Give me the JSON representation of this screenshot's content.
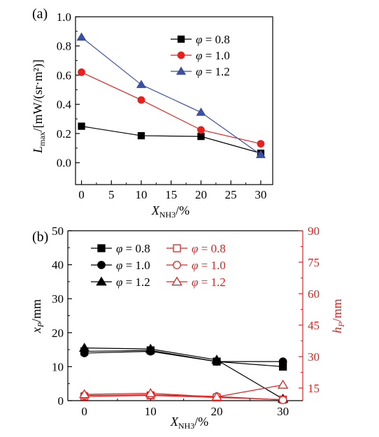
{
  "chart_data": [
    {
      "type": "line",
      "panel_label": "(a)",
      "xlabel_main": "X",
      "xlabel_sub": "NH3",
      "xlabel_unit": "/%",
      "ylabel_main": "L",
      "ylabel_sub": "max",
      "ylabel_unit": "/[mW/(sr·m²)]",
      "xlim": [
        -1,
        32
      ],
      "ylim": [
        -0.15,
        1.0
      ],
      "xticks": [
        0,
        5,
        10,
        15,
        20,
        25,
        30
      ],
      "yticks": [
        0.0,
        0.2,
        0.4,
        0.6,
        0.8,
        1.0
      ],
      "ytick_labels": [
        "0.0",
        "0.2",
        "0.4",
        "0.6",
        "0.8",
        "1.0"
      ],
      "legend_position": "top-right",
      "series": [
        {
          "name": "φ = 0.8",
          "color": "#000000",
          "marker": "square",
          "x": [
            0,
            10,
            20,
            30
          ],
          "values": [
            0.25,
            0.185,
            0.18,
            0.065
          ]
        },
        {
          "name": "φ = 1.0",
          "color": "#e8201e",
          "marker": "circle",
          "x": [
            0,
            10,
            20,
            30
          ],
          "values": [
            0.62,
            0.43,
            0.225,
            0.13
          ]
        },
        {
          "name": "φ = 1.2",
          "color": "#3b4fa5",
          "marker": "triangle",
          "x": [
            0,
            10,
            20,
            30
          ],
          "values": [
            0.86,
            0.535,
            0.345,
            0.055
          ]
        }
      ]
    },
    {
      "type": "line",
      "panel_label": "(b)",
      "xlabel_main": "X",
      "xlabel_sub": "NH3",
      "xlabel_unit": "/%",
      "ylabel_left_main": "x",
      "ylabel_left_sub": "P",
      "ylabel_left_unit": "/mm",
      "ylabel_right_main": "h",
      "ylabel_right_sub": "P",
      "ylabel_right_unit": "/mm",
      "xlim": [
        -2.5,
        33
      ],
      "ylim_left": [
        0,
        50
      ],
      "ylim_right": [
        9,
        90
      ],
      "xticks": [
        0,
        10,
        20,
        30
      ],
      "yticks_left": [
        0,
        10,
        20,
        30,
        40,
        50
      ],
      "yticks_right": [
        15,
        30,
        45,
        60,
        75,
        90
      ],
      "right_axis_color": "#e8201e",
      "legend_position": "top",
      "series": [
        {
          "name": "φ = 0.8",
          "axis": "left",
          "color": "#000000",
          "marker": "square",
          "filled": true,
          "x": [
            0,
            10,
            20,
            30
          ],
          "values": [
            14.5,
            14.8,
            11.5,
            10.0
          ]
        },
        {
          "name": "φ = 1.0",
          "axis": "left",
          "color": "#000000",
          "marker": "circle",
          "filled": true,
          "x": [
            0,
            10,
            20,
            30
          ],
          "values": [
            14.0,
            14.5,
            11.5,
            11.5
          ]
        },
        {
          "name": "φ = 1.2",
          "axis": "left",
          "color": "#000000",
          "marker": "triangle",
          "filled": true,
          "x": [
            0,
            10,
            20,
            30
          ],
          "values": [
            15.5,
            15.2,
            12.0,
            0.5
          ]
        },
        {
          "name": "φ = 0.8",
          "axis": "right",
          "color": "#e8201e",
          "marker": "square",
          "filled": false,
          "x": [
            0,
            10,
            20,
            30
          ],
          "values": [
            11.0,
            11.5,
            10.5,
            9.5
          ]
        },
        {
          "name": "φ = 1.0",
          "axis": "right",
          "color": "#e8201e",
          "marker": "circle",
          "filled": false,
          "x": [
            0,
            10,
            20,
            30
          ],
          "values": [
            11.5,
            11.8,
            11.0,
            9.3
          ]
        },
        {
          "name": "φ = 1.2",
          "axis": "right",
          "color": "#e8201e",
          "marker": "triangle",
          "filled": false,
          "x": [
            0,
            10,
            20,
            30
          ],
          "values": [
            12.0,
            12.5,
            10.8,
            16.5
          ]
        }
      ]
    }
  ]
}
